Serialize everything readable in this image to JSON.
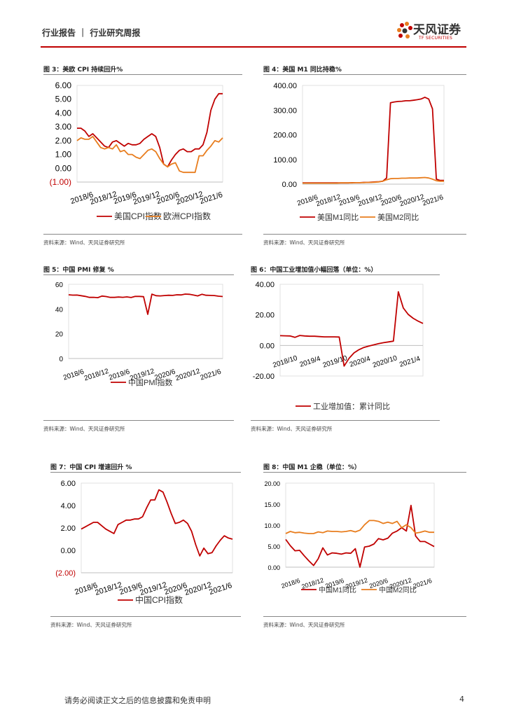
{
  "header": {
    "title": "行业报告 ｜ 行业研究周报"
  },
  "logo": {
    "name": "天风证券",
    "sub": "TF SECURITIES"
  },
  "source_text": "资料来源：Wind、天风证券研究所",
  "footer": {
    "disclaimer": "请务必阅读正文之后的信息披露和免责申明",
    "page": "4"
  },
  "colors": {
    "red": "#c00000",
    "orange": "#e87d1e",
    "brand": "#c00000"
  },
  "chart_data": [
    {
      "id": "c1",
      "type": "line",
      "title": "图 3：美欧 CPI 持续回升%",
      "ytick_labels": [
        "6.00",
        "5.00",
        "4.00",
        "3.00",
        "2.00",
        "1.00",
        "0.00",
        "(1.00)"
      ],
      "ylim": [
        -1,
        6
      ],
      "yticks": [
        6,
        5,
        4,
        3,
        2,
        1,
        0,
        -1
      ],
      "xtick_labels": [
        "2018/6",
        "2018/12",
        "2019/6",
        "2019/12",
        "2020/6",
        "2020/12",
        "2021/6"
      ],
      "series": [
        {
          "name": "美国CPI指数",
          "color": "#c00000",
          "values": [
            2.9,
            2.9,
            2.7,
            2.3,
            2.5,
            2.2,
            1.9,
            1.6,
            1.5,
            1.9,
            2.0,
            1.8,
            1.6,
            1.8,
            1.7,
            1.7,
            1.8,
            2.1,
            2.3,
            2.5,
            2.3,
            1.5,
            0.3,
            0.1,
            0.6,
            1.0,
            1.3,
            1.4,
            1.2,
            1.2,
            1.4,
            1.4,
            1.7,
            2.6,
            4.2,
            5.0,
            5.4,
            5.4
          ]
        },
        {
          "name": "欧洲CPI指数",
          "color": "#e87d1e",
          "values": [
            2.0,
            2.2,
            2.1,
            2.1,
            2.3,
            1.9,
            1.5,
            1.4,
            1.5,
            1.4,
            1.7,
            1.2,
            1.3,
            1.0,
            1.0,
            0.8,
            0.7,
            1.0,
            1.3,
            1.4,
            1.2,
            0.7,
            0.3,
            0.1,
            0.3,
            0.4,
            -0.2,
            -0.3,
            -0.3,
            -0.3,
            -0.3,
            0.9,
            0.9,
            1.3,
            1.6,
            2.0,
            1.9,
            2.2
          ]
        }
      ]
    },
    {
      "id": "c2",
      "type": "line",
      "title": "图 4：美国 M1 同比持稳%",
      "ytick_labels": [
        "400.00",
        "300.00",
        "200.00",
        "100.00",
        "0.00"
      ],
      "ylim": [
        0,
        400
      ],
      "yticks": [
        400,
        300,
        200,
        100,
        0
      ],
      "xtick_labels": [
        "2018/6",
        "2018/12",
        "2019/6",
        "2019/12",
        "2020/6",
        "2020/12",
        "2021/6"
      ],
      "series": [
        {
          "name": "美国M1同比",
          "color": "#c00000",
          "values": [
            5,
            5,
            5,
            5,
            5,
            5,
            5,
            5,
            5,
            5,
            5,
            5,
            5,
            6,
            6,
            6,
            7,
            7,
            8,
            9,
            10,
            12,
            25,
            330,
            333,
            335,
            336,
            338,
            338,
            340,
            342,
            345,
            352,
            345,
            305,
            20,
            15,
            15
          ]
        },
        {
          "name": "美国M2同比",
          "color": "#e87d1e",
          "values": [
            4,
            4,
            4,
            4,
            4,
            4,
            4,
            4,
            4,
            4,
            5,
            5,
            5,
            5,
            6,
            6,
            6,
            7,
            7,
            8,
            9,
            12,
            18,
            22,
            23,
            23,
            24,
            24,
            25,
            25,
            25,
            26,
            27,
            25,
            20,
            14,
            12,
            12
          ]
        }
      ]
    },
    {
      "id": "c3",
      "type": "line",
      "title": "图 5：中国 PMI 修复 %",
      "ytick_labels": [
        "60",
        "40",
        "20",
        "0"
      ],
      "ylim": [
        0,
        60
      ],
      "yticks": [
        60,
        40,
        20,
        0
      ],
      "xtick_labels": [
        "2018/6",
        "2018/12",
        "2019/6",
        "2019/12",
        "2020/6",
        "2020/12",
        "2021/6"
      ],
      "series": [
        {
          "name": "中国PMI指数",
          "color": "#c00000",
          "values": [
            51.5,
            51.2,
            51.3,
            50.8,
            50.2,
            49.4,
            49.5,
            49.2,
            50.5,
            50.1,
            49.4,
            49.4,
            49.7,
            49.5,
            49.8,
            49.3,
            50.2,
            50.2,
            50.0,
            35.7,
            52.0,
            50.8,
            50.6,
            50.9,
            51.1,
            51.0,
            51.5,
            51.4,
            52.1,
            51.9,
            51.3,
            50.6,
            51.9,
            51.1,
            51.0,
            50.9,
            50.4,
            50.1
          ]
        }
      ]
    },
    {
      "id": "c4",
      "type": "line",
      "title": "图 6：中国工业增加值小幅回落（单位：%）",
      "ytick_labels": [
        "40.00",
        "20.00",
        "0.00",
        "-20.00"
      ],
      "ylim": [
        -20,
        40
      ],
      "yticks": [
        40,
        20,
        0,
        -20
      ],
      "xtick_labels": [
        "2018/10",
        "2019/4",
        "2019/10",
        "2020/4",
        "2020/10",
        "2021/4"
      ],
      "series": [
        {
          "name": "工业增加值：累计同比",
          "color": "#c00000",
          "values": [
            6.4,
            6.3,
            6.2,
            5.3,
            6.5,
            6.2,
            6.0,
            6.0,
            5.8,
            5.6,
            5.6,
            5.6,
            5.5,
            -13.5,
            -8.4,
            -4.9,
            -2.8,
            -1.3,
            -0.4,
            0.4,
            1.2,
            1.8,
            2.3,
            2.8,
            35.1,
            24.5,
            20.3,
            17.8,
            15.9,
            14.4
          ]
        }
      ]
    },
    {
      "id": "c5",
      "type": "line",
      "title": "图 7：中国 CPI 增速回升 %",
      "ytick_labels": [
        "6.00",
        "4.00",
        "2.00",
        "0.00",
        "(2.00)"
      ],
      "ylim": [
        -2,
        6
      ],
      "yticks": [
        6,
        4,
        2,
        0,
        -2
      ],
      "xtick_labels": [
        "2018/6",
        "2018/12",
        "2019/6",
        "2019/12",
        "2020/6",
        "2020/12",
        "2021/6"
      ],
      "series": [
        {
          "name": "中国CPI指数",
          "color": "#c00000",
          "values": [
            1.9,
            2.1,
            2.3,
            2.5,
            2.5,
            2.2,
            1.9,
            1.7,
            1.5,
            2.3,
            2.5,
            2.7,
            2.7,
            2.8,
            2.8,
            3.0,
            3.8,
            4.5,
            4.5,
            5.4,
            5.2,
            4.3,
            3.3,
            2.4,
            2.5,
            2.7,
            2.4,
            1.7,
            0.5,
            -0.5,
            0.2,
            -0.3,
            -0.2,
            0.4,
            0.9,
            1.3,
            1.1,
            1.0
          ]
        }
      ]
    },
    {
      "id": "c6",
      "type": "line",
      "title": "图 8：中国 M1 企稳（单位：%）",
      "ytick_labels": [
        "20.00",
        "15.00",
        "10.00",
        "5.00",
        "0.00"
      ],
      "ylim": [
        0,
        20
      ],
      "yticks": [
        20,
        15,
        10,
        5,
        0
      ],
      "xtick_labels": [
        "2018/6",
        "2018/12",
        "2019/6",
        "2019/12",
        "2020/6",
        "2020/12",
        "2021/6"
      ],
      "series": [
        {
          "name": "中国M1同比",
          "color": "#c00000",
          "values": [
            6.6,
            5.1,
            3.9,
            4.0,
            2.7,
            1.5,
            0.4,
            2.0,
            4.6,
            2.9,
            3.4,
            3.3,
            3.1,
            3.4,
            3.3,
            4.4,
            0.0,
            4.8,
            5.0,
            5.5,
            6.8,
            6.5,
            6.9,
            8.1,
            8.6,
            9.4,
            8.6,
            14.7,
            7.4,
            6.1,
            6.1,
            5.5,
            4.9
          ]
        },
        {
          "name": "中国M2同比",
          "color": "#e87d1e",
          "values": [
            8.0,
            8.5,
            8.2,
            8.3,
            8.1,
            8.0,
            8.0,
            8.4,
            8.2,
            8.6,
            8.5,
            8.5,
            8.4,
            8.5,
            8.7,
            8.4,
            8.8,
            10.1,
            11.1,
            11.1,
            10.9,
            10.4,
            10.7,
            10.4,
            10.9,
            9.4,
            10.1,
            9.4,
            8.1,
            8.3,
            8.6,
            8.3,
            8.3
          ]
        }
      ]
    }
  ]
}
